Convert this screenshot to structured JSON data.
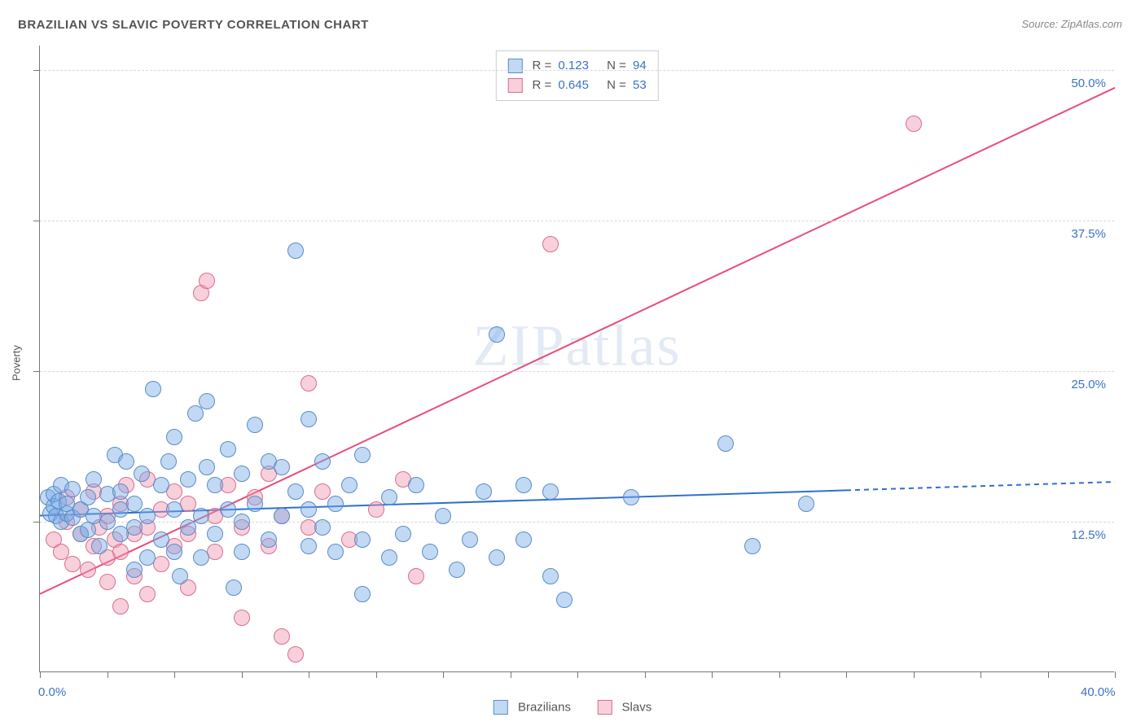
{
  "title": "BRAZILIAN VS SLAVIC POVERTY CORRELATION CHART",
  "source": "Source: ZipAtlas.com",
  "ylabel": "Poverty",
  "watermark": "ZIPatlas",
  "xlim": [
    0,
    40
  ],
  "ylim": [
    0,
    52
  ],
  "x_axis_labels": [
    {
      "v": 0,
      "t": "0.0%"
    },
    {
      "v": 40,
      "t": "40.0%"
    }
  ],
  "y_axis_labels": [
    {
      "v": 12.5,
      "t": "12.5%"
    },
    {
      "v": 25.0,
      "t": "25.0%"
    },
    {
      "v": 37.5,
      "t": "37.5%"
    },
    {
      "v": 50.0,
      "t": "50.0%"
    }
  ],
  "x_ticks": [
    0,
    2.5,
    5,
    7.5,
    10,
    12.5,
    15,
    17.5,
    20,
    22.5,
    25,
    27.5,
    30,
    32.5,
    35,
    37.5,
    40
  ],
  "gridlines_y": [
    12.5,
    25.0,
    37.5,
    50.0
  ],
  "marker_radius": 9,
  "series": {
    "brazilians": {
      "label": "Brazilians",
      "fill": "rgba(120,170,230,0.45)",
      "stroke": "#5a8cc8",
      "r_value": "0.123",
      "n_value": "94",
      "regression": {
        "x1": 0,
        "y1": 13.0,
        "x2": 40,
        "y2": 15.8,
        "solid_until_x": 30,
        "color": "#2f6fd0",
        "width": 2
      },
      "points": [
        [
          0.3,
          14.5
        ],
        [
          0.4,
          13.2
        ],
        [
          0.5,
          13.8
        ],
        [
          0.5,
          14.8
        ],
        [
          0.6,
          13.0
        ],
        [
          0.7,
          14.2
        ],
        [
          0.8,
          12.5
        ],
        [
          0.8,
          15.5
        ],
        [
          1.0,
          13.2
        ],
        [
          1.0,
          14.0
        ],
        [
          1.2,
          12.8
        ],
        [
          1.2,
          15.2
        ],
        [
          1.5,
          13.5
        ],
        [
          1.5,
          11.5
        ],
        [
          1.8,
          11.8
        ],
        [
          1.8,
          14.5
        ],
        [
          2.0,
          13.0
        ],
        [
          2.0,
          16.0
        ],
        [
          2.2,
          10.5
        ],
        [
          2.5,
          12.5
        ],
        [
          2.5,
          14.8
        ],
        [
          2.8,
          18.0
        ],
        [
          3.0,
          11.5
        ],
        [
          3.0,
          13.5
        ],
        [
          3.0,
          15.0
        ],
        [
          3.2,
          17.5
        ],
        [
          3.5,
          8.5
        ],
        [
          3.5,
          12.0
        ],
        [
          3.5,
          14.0
        ],
        [
          3.8,
          16.5
        ],
        [
          4.0,
          9.5
        ],
        [
          4.0,
          13.0
        ],
        [
          4.2,
          23.5
        ],
        [
          4.5,
          11.0
        ],
        [
          4.5,
          15.5
        ],
        [
          4.8,
          17.5
        ],
        [
          5.0,
          10.0
        ],
        [
          5.0,
          13.5
        ],
        [
          5.0,
          19.5
        ],
        [
          5.2,
          8.0
        ],
        [
          5.5,
          12.0
        ],
        [
          5.5,
          16.0
        ],
        [
          5.8,
          21.5
        ],
        [
          6.0,
          9.5
        ],
        [
          6.0,
          13.0
        ],
        [
          6.2,
          17.0
        ],
        [
          6.2,
          22.5
        ],
        [
          6.5,
          11.5
        ],
        [
          6.5,
          15.5
        ],
        [
          7.0,
          13.5
        ],
        [
          7.0,
          18.5
        ],
        [
          7.2,
          7.0
        ],
        [
          7.5,
          10.0
        ],
        [
          7.5,
          12.5
        ],
        [
          7.5,
          16.5
        ],
        [
          8.0,
          14.0
        ],
        [
          8.0,
          20.5
        ],
        [
          8.5,
          11.0
        ],
        [
          8.5,
          17.5
        ],
        [
          9.0,
          13.0
        ],
        [
          9.0,
          17.0
        ],
        [
          9.5,
          15.0
        ],
        [
          9.5,
          35.0
        ],
        [
          10.0,
          10.5
        ],
        [
          10.0,
          13.5
        ],
        [
          10.0,
          21.0
        ],
        [
          10.5,
          12.0
        ],
        [
          10.5,
          17.5
        ],
        [
          11.0,
          10.0
        ],
        [
          11.0,
          14.0
        ],
        [
          11.5,
          15.5
        ],
        [
          12.0,
          6.5
        ],
        [
          12.0,
          11.0
        ],
        [
          12.0,
          18.0
        ],
        [
          13.0,
          9.5
        ],
        [
          13.0,
          14.5
        ],
        [
          13.5,
          11.5
        ],
        [
          14.0,
          15.5
        ],
        [
          14.5,
          10.0
        ],
        [
          15.0,
          13.0
        ],
        [
          15.5,
          8.5
        ],
        [
          16.0,
          11.0
        ],
        [
          16.5,
          15.0
        ],
        [
          17.0,
          9.5
        ],
        [
          17.0,
          28.0
        ],
        [
          18.0,
          11.0
        ],
        [
          18.0,
          15.5
        ],
        [
          19.0,
          8.0
        ],
        [
          19.0,
          15.0
        ],
        [
          19.5,
          6.0
        ],
        [
          22.0,
          14.5
        ],
        [
          25.5,
          19.0
        ],
        [
          26.5,
          10.5
        ],
        [
          28.5,
          14.0
        ]
      ]
    },
    "slavs": {
      "label": "Slavs",
      "fill": "rgba(240,150,175,0.45)",
      "stroke": "#d86e8f",
      "r_value": "0.645",
      "n_value": "53",
      "regression": {
        "x1": 0,
        "y1": 6.5,
        "x2": 40,
        "y2": 48.5,
        "solid_until_x": 40,
        "color": "#e84d7a",
        "width": 2
      },
      "points": [
        [
          0.5,
          11.0
        ],
        [
          0.8,
          10.0
        ],
        [
          1.0,
          12.5
        ],
        [
          1.0,
          14.5
        ],
        [
          1.2,
          9.0
        ],
        [
          1.5,
          11.5
        ],
        [
          1.5,
          13.5
        ],
        [
          1.8,
          8.5
        ],
        [
          2.0,
          10.5
        ],
        [
          2.0,
          15.0
        ],
        [
          2.2,
          12.0
        ],
        [
          2.5,
          7.5
        ],
        [
          2.5,
          9.5
        ],
        [
          2.5,
          13.0
        ],
        [
          2.8,
          11.0
        ],
        [
          3.0,
          5.5
        ],
        [
          3.0,
          10.0
        ],
        [
          3.0,
          14.0
        ],
        [
          3.2,
          15.5
        ],
        [
          3.5,
          8.0
        ],
        [
          3.5,
          11.5
        ],
        [
          4.0,
          6.5
        ],
        [
          4.0,
          12.0
        ],
        [
          4.0,
          16.0
        ],
        [
          4.5,
          9.0
        ],
        [
          4.5,
          13.5
        ],
        [
          5.0,
          10.5
        ],
        [
          5.0,
          15.0
        ],
        [
          5.5,
          7.0
        ],
        [
          5.5,
          11.5
        ],
        [
          5.5,
          14.0
        ],
        [
          6.0,
          31.5
        ],
        [
          6.2,
          32.5
        ],
        [
          6.5,
          10.0
        ],
        [
          6.5,
          13.0
        ],
        [
          7.0,
          15.5
        ],
        [
          7.5,
          4.5
        ],
        [
          7.5,
          12.0
        ],
        [
          8.0,
          14.5
        ],
        [
          8.5,
          10.5
        ],
        [
          8.5,
          16.5
        ],
        [
          9.0,
          3.0
        ],
        [
          9.0,
          13.0
        ],
        [
          9.5,
          1.5
        ],
        [
          10.0,
          12.0
        ],
        [
          10.0,
          24.0
        ],
        [
          10.5,
          15.0
        ],
        [
          11.5,
          11.0
        ],
        [
          12.5,
          13.5
        ],
        [
          13.5,
          16.0
        ],
        [
          14.0,
          8.0
        ],
        [
          19.0,
          35.5
        ],
        [
          32.5,
          45.5
        ]
      ]
    }
  },
  "stats_legend": {
    "r_label": "R =",
    "n_label": "N ="
  },
  "bottom_legend": {
    "brazilians": "Brazilians",
    "slavs": "Slavs"
  }
}
